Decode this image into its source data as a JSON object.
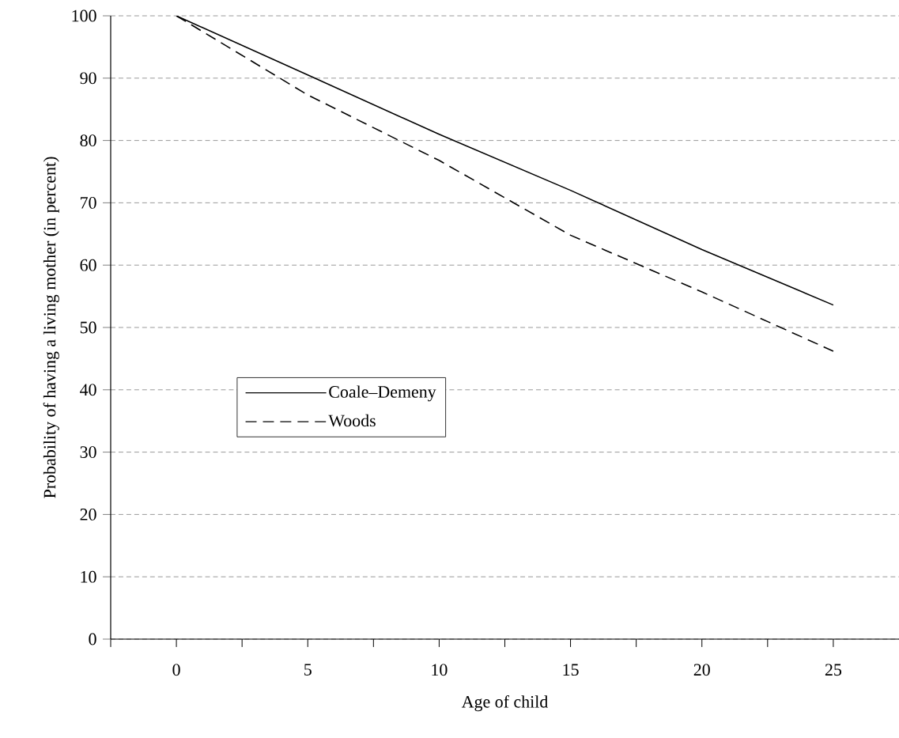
{
  "chart_data": {
    "type": "line",
    "xlabel": "Age of child",
    "ylabel": "Probability of having a living mother (in percent)",
    "x": [
      0,
      5,
      10,
      15,
      20,
      25
    ],
    "series": [
      {
        "name": "Coale–Demeny",
        "color": "#000000",
        "line_style": "solid",
        "values": [
          100,
          90.5,
          81,
          72,
          62.5,
          53.6
        ]
      },
      {
        "name": "Woods",
        "color": "#000000",
        "line_style": "dashed",
        "values": [
          100,
          87.3,
          76.8,
          64.8,
          55.7,
          46.2
        ]
      }
    ],
    "xlim": [
      -2.5,
      27.5
    ],
    "xticks": [
      {
        "value": -2.5,
        "label": null
      },
      0,
      {
        "value": 2.5,
        "label": null
      },
      5,
      {
        "value": 7.5,
        "label": null
      },
      10,
      {
        "value": 12.5,
        "label": null
      },
      15,
      {
        "value": 17.5,
        "label": null
      },
      20,
      {
        "value": 22.5,
        "label": null
      },
      25
    ],
    "ylim": [
      0,
      100
    ],
    "yticks": [
      0,
      10,
      20,
      30,
      40,
      50,
      60,
      70,
      80,
      90,
      100
    ],
    "grid": "y",
    "legend": "left",
    "marker": "none"
  }
}
